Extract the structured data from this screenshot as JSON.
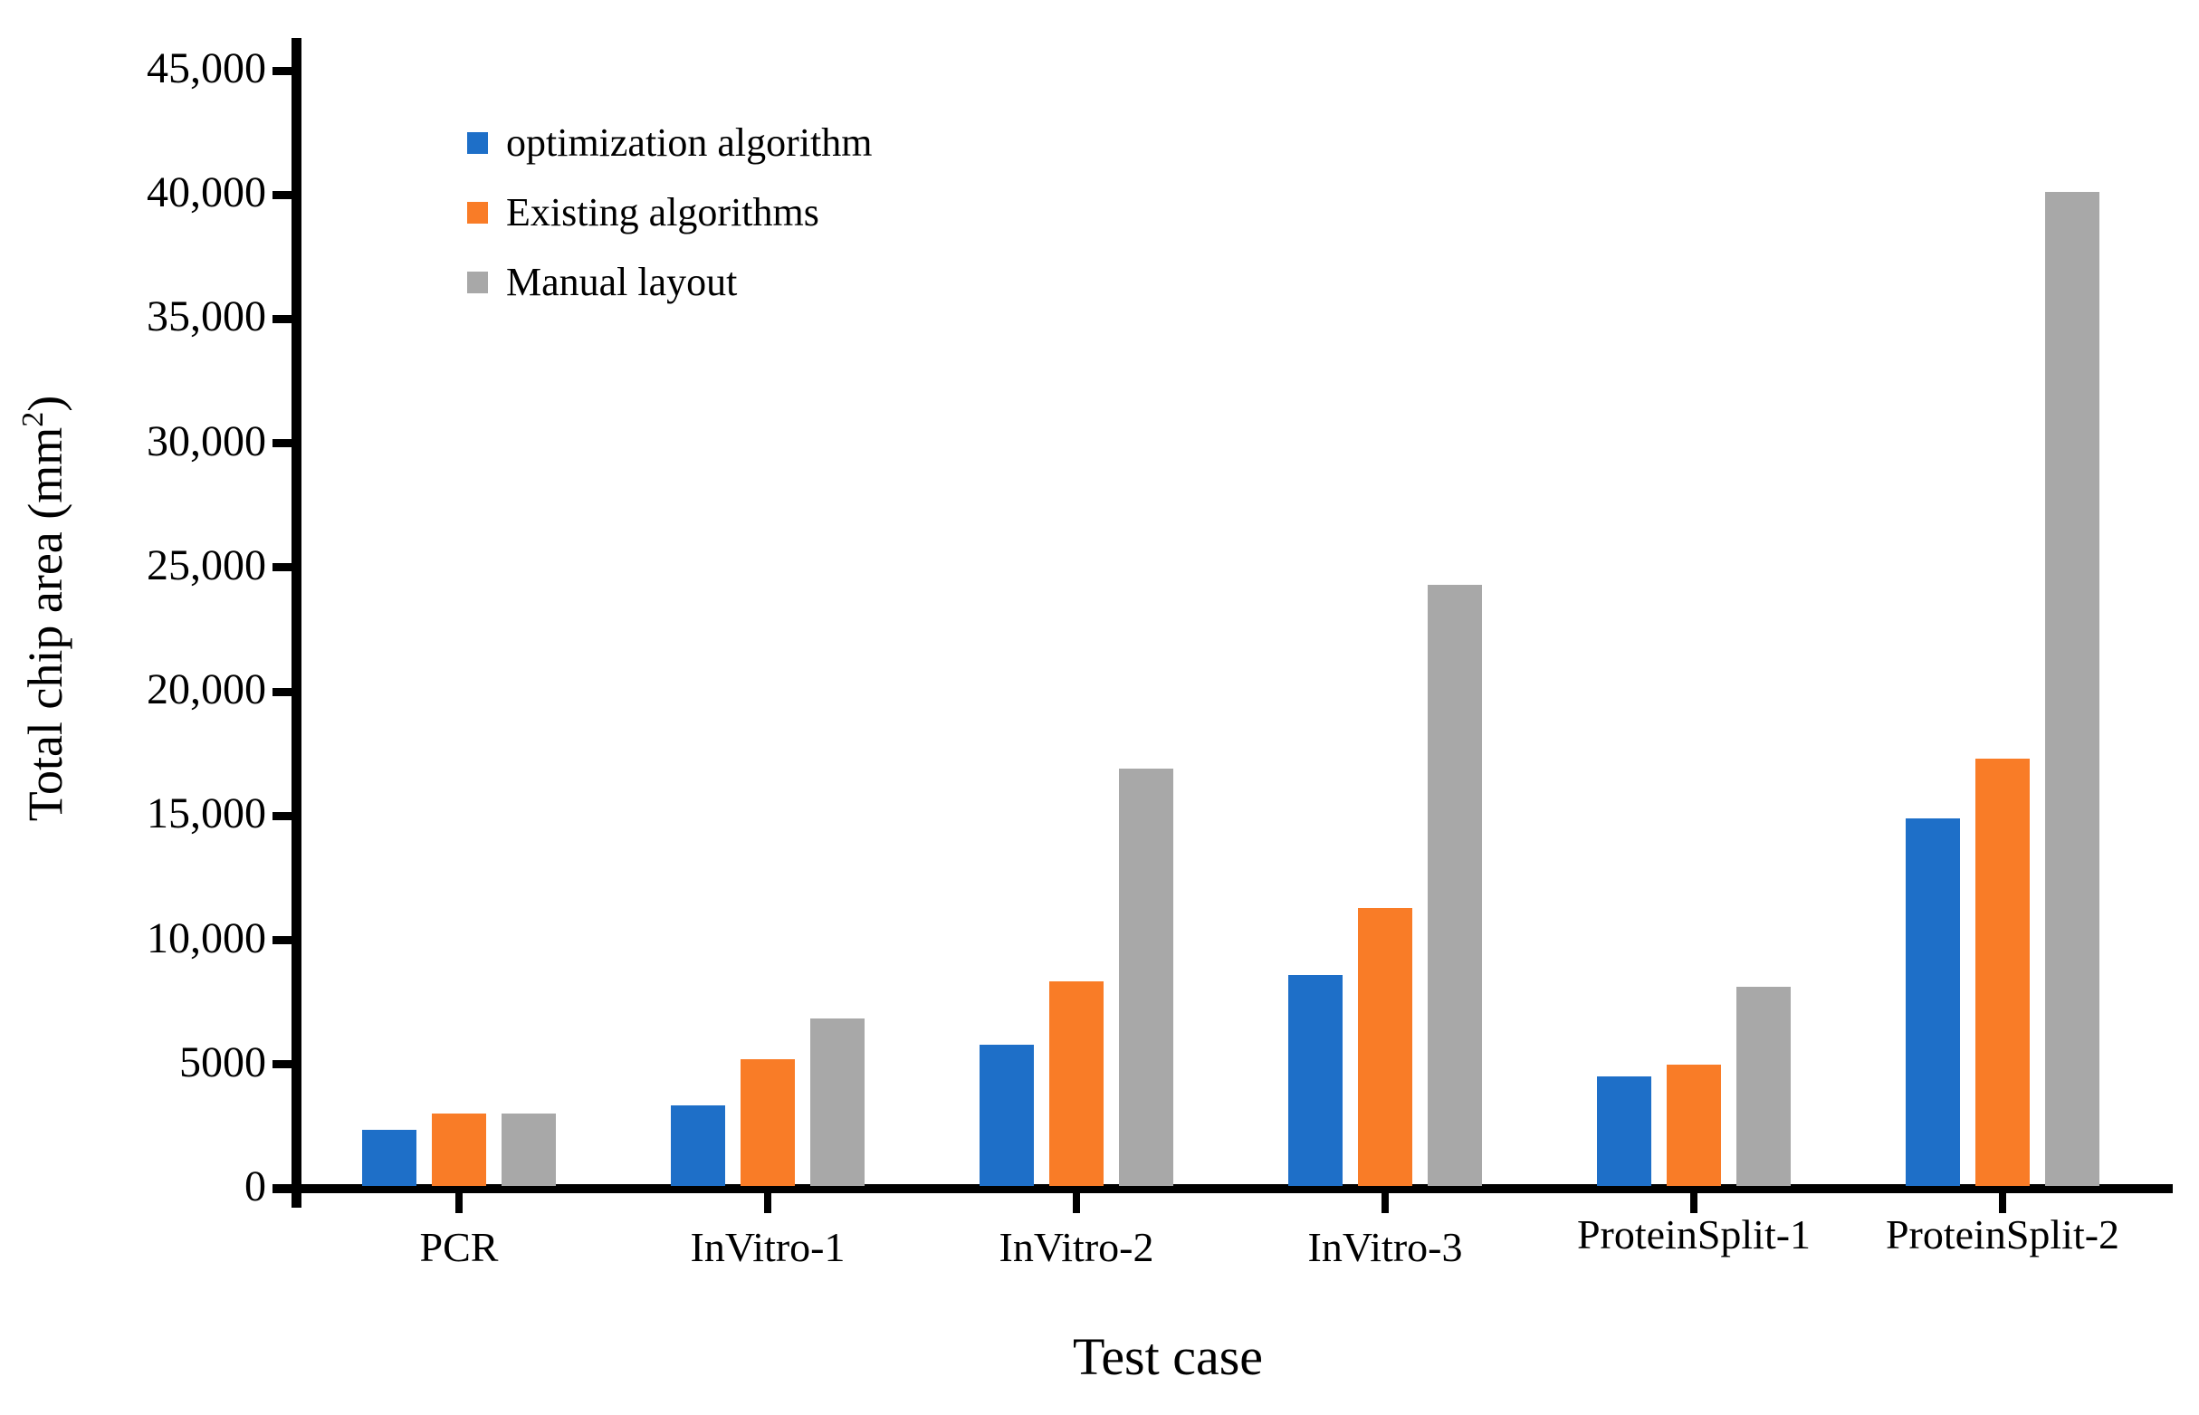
{
  "chart_data": {
    "type": "bar",
    "title": "",
    "xlabel": "Test case",
    "ylabel": "Total chip area (mm²)",
    "ylabel_parts": {
      "prefix": "Total chip area (mm",
      "sup": "2",
      "suffix": ")"
    },
    "categories": [
      "PCR",
      "InVitro-1",
      "InVitro-2",
      "InVitro-3",
      "ProteinSplit-1",
      "ProteinSplit-2"
    ],
    "series": [
      {
        "name": "optimization algorithm",
        "color": "#1E6FC8",
        "values": [
          2250,
          3250,
          5700,
          8500,
          4400,
          14800
        ]
      },
      {
        "name": "Existing algorithms",
        "color": "#F97C27",
        "values": [
          2900,
          5100,
          8250,
          11200,
          4900,
          17200
        ]
      },
      {
        "name": "Manual layout",
        "color": "#A8A8A8",
        "values": [
          2900,
          6750,
          16800,
          24200,
          8000,
          40000
        ]
      }
    ],
    "ylim": [
      0,
      46500
    ],
    "ytick_values": [
      0,
      5000,
      10000,
      15000,
      20000,
      25000,
      30000,
      35000,
      40000,
      45000
    ],
    "ytick_labels": [
      "0",
      "5000",
      "10,000",
      "15,000",
      "20,000",
      "25,000",
      "30,000",
      "35,000",
      "40,000",
      "45,000"
    ],
    "legend": {
      "position": "upper-left-inside",
      "items": [
        "optimization algorithm",
        "Existing algorithms",
        "Manual layout"
      ]
    },
    "grid": false,
    "axis_color": "#000000",
    "background_color": "#FFFFFF"
  }
}
